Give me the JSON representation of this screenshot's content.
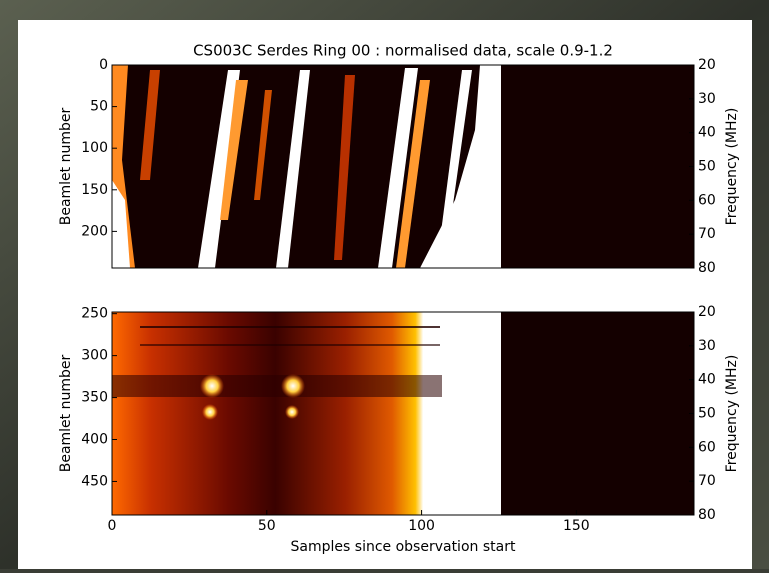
{
  "chart_data": [
    {
      "type": "heatmap",
      "title": "CS003C Serdes Ring 00 : normalised data, scale 0.9-1.2",
      "ylabel": "Beamlet number",
      "y2label": "Frequency (MHz)",
      "xlim": [
        0,
        188
      ],
      "ylim": [
        244,
        0
      ],
      "yticks": [
        0,
        50,
        100,
        150,
        200
      ],
      "y2lim": [
        80,
        20
      ],
      "y2ticks": [
        20,
        30,
        40,
        50,
        60,
        70,
        80
      ]
    },
    {
      "type": "heatmap",
      "ylabel": "Beamlet number",
      "y2label": "Frequency (MHz)",
      "xlabel": "Samples since observation start",
      "xlim": [
        0,
        188
      ],
      "ylim": [
        490,
        248
      ],
      "yticks": [
        250,
        300,
        350,
        400,
        450
      ],
      "y2lim": [
        80,
        20
      ],
      "y2ticks": [
        20,
        30,
        40,
        50,
        60,
        70,
        80
      ],
      "xticks": [
        0,
        50,
        100,
        150
      ]
    }
  ]
}
